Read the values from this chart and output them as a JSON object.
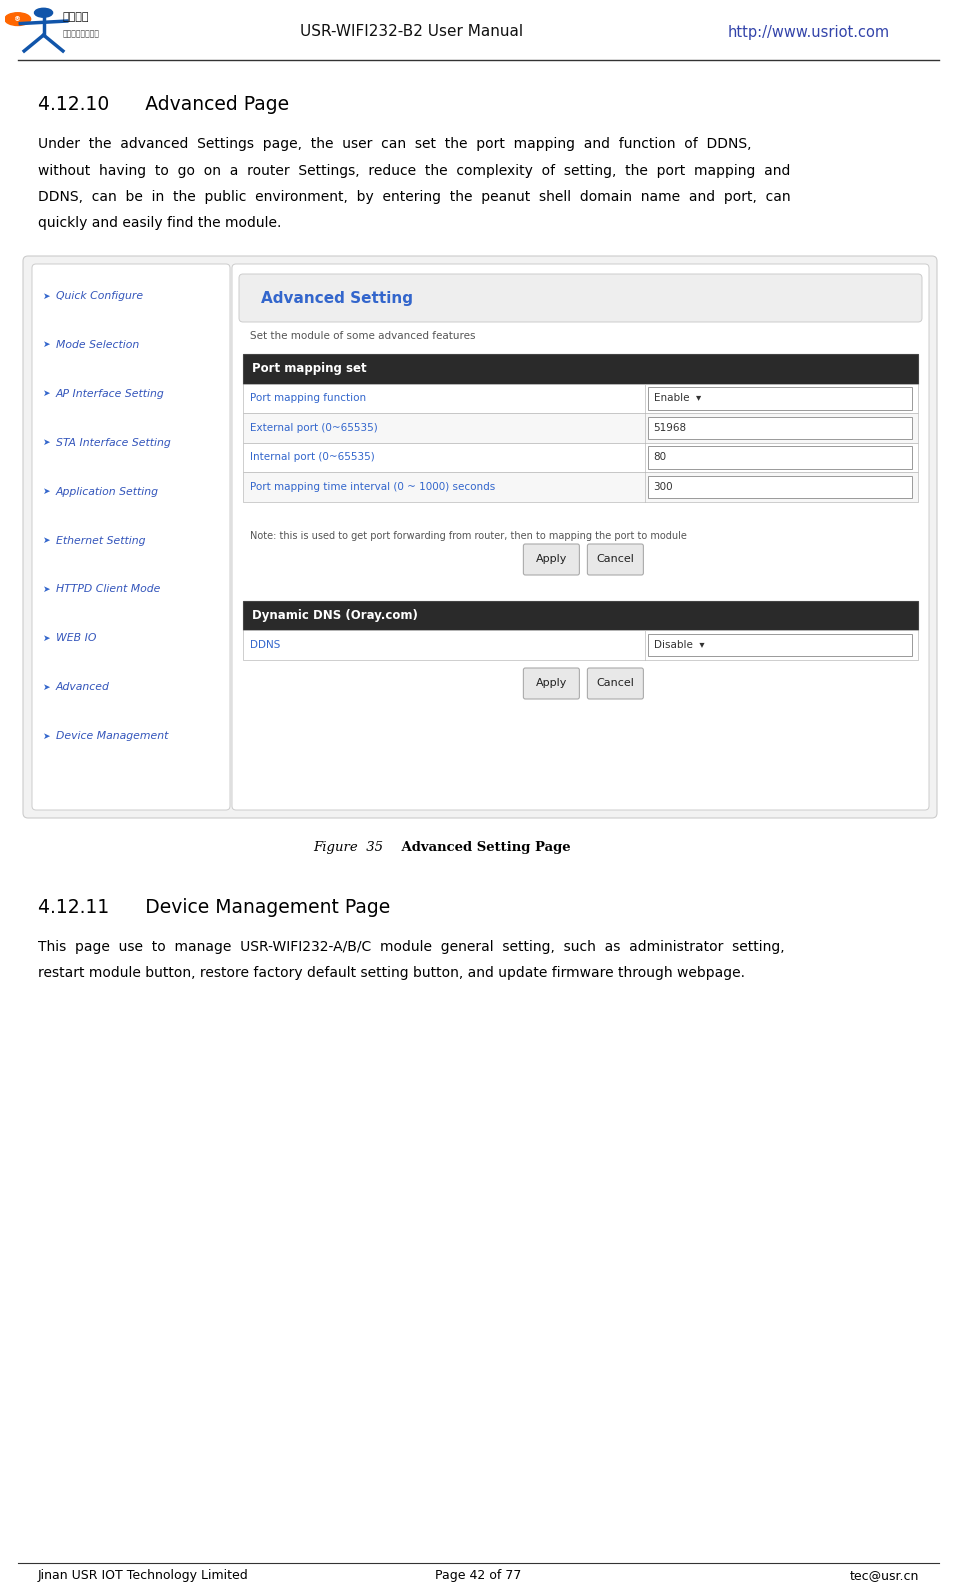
{
  "page_width": 9.57,
  "page_height": 15.93,
  "dpi": 100,
  "bg_color": "#ffffff",
  "header_title": "USR-WIFI232-B2 User Manual",
  "header_url": "http://www.usriot.com",
  "header_url_color": "#3344aa",
  "footer_left": "Jinan USR IOT Technology Limited",
  "footer_center": "Page 42 of 77",
  "footer_right": "tec@usr.cn",
  "section_title_1": "4.12.10      Advanced Page",
  "section_body_1_lines": [
    "Under  the  advanced  Settings  page,  the  user  can  set  the  port  mapping  and  function  of  DDNS,",
    "without  having  to  go  on  a  router  Settings,  reduce  the  complexity  of  setting,  the  port  mapping  and",
    "DDNS,  can  be  in  the  public  environment,  by  entering  the  peanut  shell  domain  name  and  port,  can",
    "quickly and easily find the module."
  ],
  "figure_caption_plain": "Figure  35",
  "figure_caption_bold": "    Advanced Setting Page",
  "section_title_2": "4.12.11      Device Management Page",
  "section_body_2_lines": [
    "This  page  use  to  manage  USR-WIFI232-A/B/C  module  general  setting,  such  as  administrator  setting,",
    "restart module button, restore factory default setting button, and update firmware through webpage."
  ],
  "nav_items": [
    "Quick Configure",
    "Mode Selection",
    "AP Interface Setting",
    "STA Interface Setting",
    "Application Setting",
    "Ethernet Setting",
    "HTTPD Client Mode",
    "WEB IO",
    "Advanced",
    "Device Management"
  ],
  "nav_link_color": "#3355bb",
  "advanced_setting_title": "Advanced Setting",
  "advanced_setting_title_color": "#3366cc",
  "advanced_setting_subtitle": "Set the module of some advanced features",
  "port_mapping_header": "Port mapping set",
  "port_mapping_header_bg": "#2a2a2a",
  "port_mapping_header_color": "#ffffff",
  "port_rows": [
    {
      "label": "Port mapping function",
      "value": "Enable  ▾",
      "label_color": "#3366cc"
    },
    {
      "label": "External port (0~65535)",
      "value": "51968",
      "label_color": "#3366cc"
    },
    {
      "label": "Internal port (0~65535)",
      "value": "80",
      "label_color": "#3366cc"
    },
    {
      "label": "Port mapping time interval (0 ~ 1000) seconds",
      "value": "300",
      "label_color": "#3366cc"
    }
  ],
  "port_note": "Note: this is used to get port forwarding from router, then to mapping the port to module",
  "ddns_header": "Dynamic DNS (Oray.com)",
  "ddns_header_bg": "#2a2a2a",
  "ddns_header_color": "#ffffff",
  "ddns_row_label": "DDNS",
  "ddns_row_value": "Disable  ▾",
  "ddns_row_label_color": "#3366cc",
  "button_bg": "#e8e8e8",
  "button_border": "#aaaaaa",
  "table_outer_border": "#444444",
  "table_inner_border": "#bbbbbb",
  "nav_box_border": "#cccccc",
  "screenshot_outer_border": "#cccccc",
  "screenshot_outer_bg": "#f2f2f2"
}
